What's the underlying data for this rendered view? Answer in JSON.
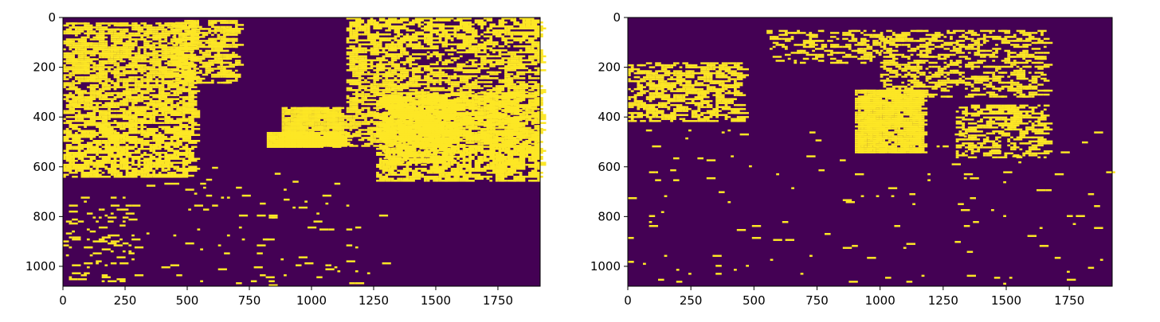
{
  "colors": {
    "background": "#440154",
    "foreground": "#fde725"
  },
  "chart_data": [
    {
      "type": "heatmap",
      "title": "",
      "xlabel": "",
      "ylabel": "",
      "xlim": [
        0,
        1920
      ],
      "ylim": [
        1080,
        0
      ],
      "x_ticks": [
        0,
        250,
        500,
        750,
        1000,
        1250,
        1500,
        1750
      ],
      "y_ticks": [
        0,
        200,
        400,
        600,
        800,
        1000
      ],
      "x_tick_labels": [
        "0",
        "250",
        "500",
        "750",
        "1000",
        "1250",
        "1500",
        "1750"
      ],
      "y_tick_labels": [
        "0",
        "200",
        "400",
        "600",
        "800",
        "1000"
      ],
      "values": [
        0,
        1
      ],
      "colormap": "viridis",
      "regions": [
        {
          "x": [
            0,
            520
          ],
          "y": [
            20,
            640
          ],
          "density": 0.55
        },
        {
          "x": [
            440,
            700
          ],
          "y": [
            10,
            260
          ],
          "density": 0.45
        },
        {
          "x": [
            1140,
            1920
          ],
          "y": [
            0,
            520
          ],
          "density": 0.45
        },
        {
          "x": [
            1260,
            1920
          ],
          "y": [
            300,
            660
          ],
          "density": 0.55
        },
        {
          "x": [
            880,
            1120
          ],
          "y": [
            360,
            520
          ],
          "density": 0.9
        },
        {
          "x": [
            820,
            1140
          ],
          "y": [
            460,
            520
          ],
          "density": 0.85
        },
        {
          "x": [
            1290,
            1560
          ],
          "y": [
            330,
            580
          ],
          "density": 0.6
        },
        {
          "x": [
            0,
            300
          ],
          "y": [
            720,
            1060
          ],
          "density": 0.08
        },
        {
          "x": [
            300,
            1300
          ],
          "y": [
            600,
            1080
          ],
          "density": 0.015
        }
      ]
    },
    {
      "type": "heatmap",
      "title": "",
      "xlabel": "",
      "ylabel": "",
      "xlim": [
        0,
        1920
      ],
      "ylim": [
        1080,
        0
      ],
      "x_ticks": [
        0,
        250,
        500,
        750,
        1000,
        1250,
        1500,
        1750
      ],
      "y_ticks": [
        0,
        200,
        400,
        600,
        800,
        1000
      ],
      "x_tick_labels": [
        "0",
        "250",
        "500",
        "750",
        "1000",
        "1250",
        "1500",
        "1750"
      ],
      "y_tick_labels": [
        "0",
        "200",
        "400",
        "600",
        "800",
        "1000"
      ],
      "values": [
        0,
        1
      ],
      "colormap": "viridis",
      "regions": [
        {
          "x": [
            0,
            450
          ],
          "y": [
            180,
            420
          ],
          "density": 0.45
        },
        {
          "x": [
            550,
            1000
          ],
          "y": [
            50,
            180
          ],
          "density": 0.25
        },
        {
          "x": [
            1000,
            1650
          ],
          "y": [
            50,
            320
          ],
          "density": 0.3
        },
        {
          "x": [
            900,
            1160
          ],
          "y": [
            290,
            540
          ],
          "density": 0.9
        },
        {
          "x": [
            1300,
            1650
          ],
          "y": [
            350,
            560
          ],
          "density": 0.35
        },
        {
          "x": [
            0,
            1900
          ],
          "y": [
            450,
            1080
          ],
          "density": 0.01
        }
      ]
    }
  ]
}
